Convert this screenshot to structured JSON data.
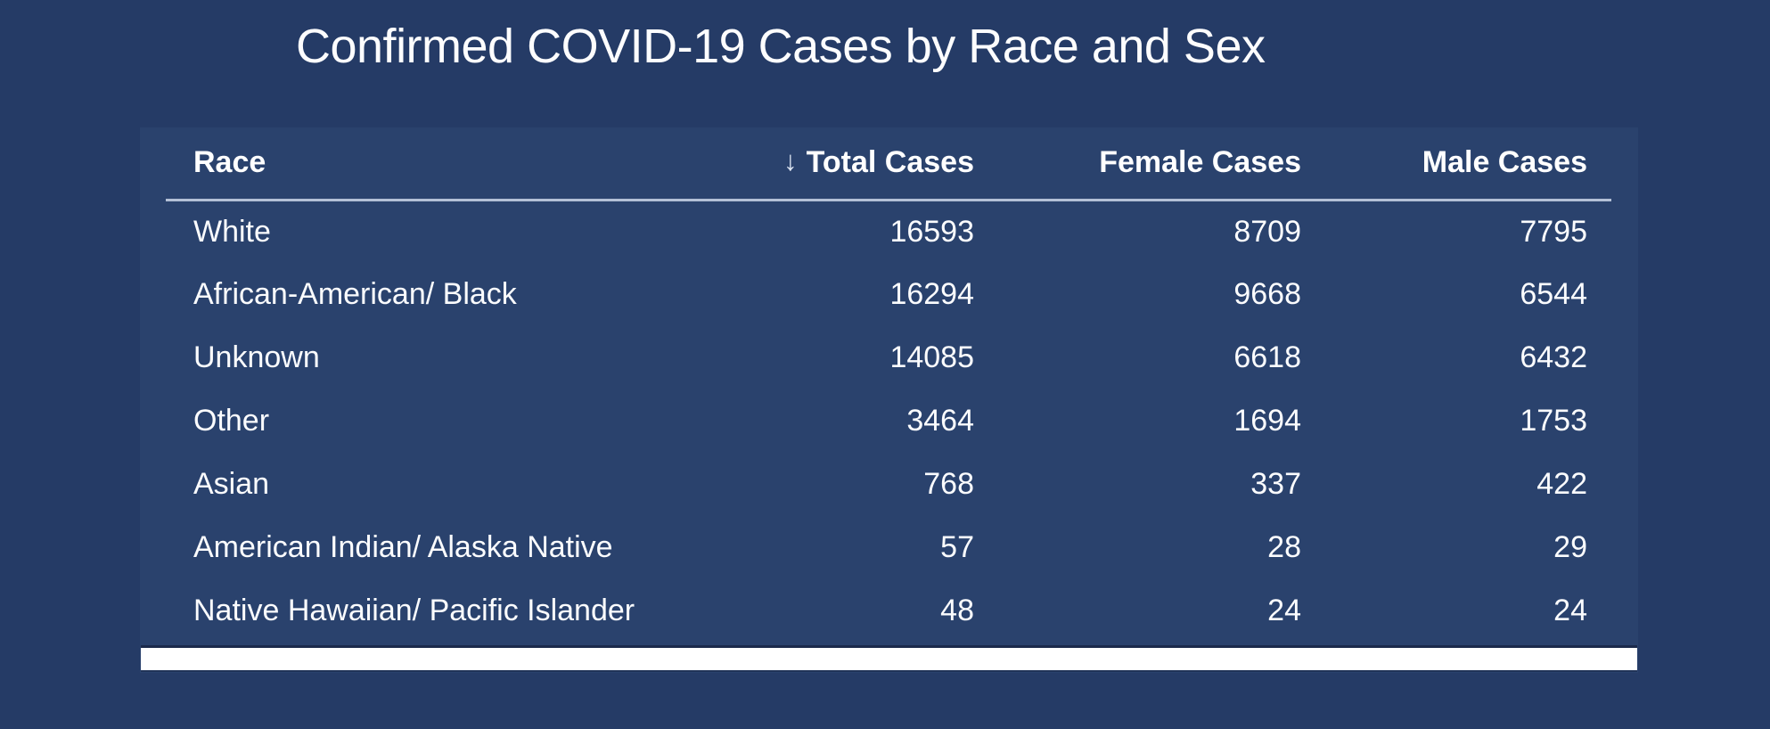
{
  "page": {
    "title": "Confirmed COVID-19 Cases by Race and Sex"
  },
  "colors": {
    "page_bg": "#253b66",
    "panel_bg": "#2a426d",
    "header_rule": "#b3c0d6",
    "text": "#ffffff",
    "scrollbar_track": "#ffffff"
  },
  "table": {
    "columns": {
      "race": "Race",
      "total": "Total Cases",
      "female": "Female Cases",
      "male": "Male Cases"
    },
    "sort": {
      "column": "total",
      "direction": "descending",
      "icon": "↓"
    },
    "rows": [
      {
        "race": "White",
        "total": "16593",
        "female": "8709",
        "male": "7795"
      },
      {
        "race": "African-American/ Black",
        "total": "16294",
        "female": "9668",
        "male": "6544"
      },
      {
        "race": "Unknown",
        "total": "14085",
        "female": "6618",
        "male": "6432"
      },
      {
        "race": "Other",
        "total": "3464",
        "female": "1694",
        "male": "1753"
      },
      {
        "race": "Asian",
        "total": "768",
        "female": "337",
        "male": "422"
      },
      {
        "race": "American Indian/ Alaska Native",
        "total": "57",
        "female": "28",
        "male": "29"
      },
      {
        "race": "Native Hawaiian/ Pacific Islander",
        "total": "48",
        "female": "24",
        "male": "24"
      }
    ]
  },
  "chart_data": {
    "type": "table",
    "title": "Confirmed COVID-19 Cases by Race and Sex",
    "columns": [
      "Race",
      "Total Cases",
      "Female Cases",
      "Male Cases"
    ],
    "sort": "Total Cases descending",
    "rows": [
      [
        "White",
        16593,
        8709,
        7795
      ],
      [
        "African-American/ Black",
        16294,
        9668,
        6544
      ],
      [
        "Unknown",
        14085,
        6618,
        6432
      ],
      [
        "Other",
        3464,
        1694,
        1753
      ],
      [
        "Asian",
        768,
        337,
        422
      ],
      [
        "American Indian/ Alaska Native",
        57,
        28,
        29
      ],
      [
        "Native Hawaiian/ Pacific Islander",
        48,
        24,
        24
      ]
    ]
  }
}
